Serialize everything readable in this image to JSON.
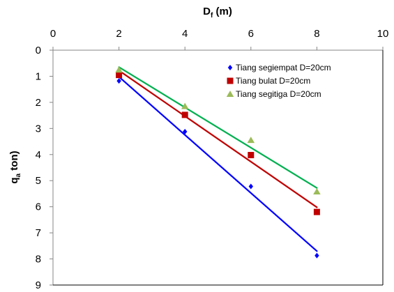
{
  "chart_data": {
    "type": "scatter",
    "title": "",
    "xlabel_main": "D",
    "xlabel_sub": "f",
    "xlabel_rest": " (m)",
    "ylabel_main": "q",
    "ylabel_sub": "a",
    "ylabel_rest": " ton)",
    "xlim": [
      0,
      10
    ],
    "ylim": [
      0,
      9
    ],
    "y_inverted": true,
    "x_axis_position": "top",
    "xticks": [
      "0",
      "2",
      "4",
      "6",
      "8",
      "10"
    ],
    "yticks": [
      "0",
      "1",
      "2",
      "3",
      "4",
      "5",
      "6",
      "7",
      "8",
      "9"
    ],
    "grid": false,
    "legend_placement": "top-right",
    "series": [
      {
        "name": "Tiang segiempat D=20cm",
        "marker": "diamond",
        "color": "#0000FF",
        "x": [
          2,
          4,
          6,
          8
        ],
        "y": [
          1.18,
          3.12,
          5.22,
          7.87
        ],
        "trend": {
          "x": [
            2,
            8
          ],
          "y": [
            1.02,
            7.7
          ]
        }
      },
      {
        "name": "Tiang bulat D=20cm",
        "marker": "square",
        "color": "#C00000",
        "x": [
          2,
          4,
          6,
          8
        ],
        "y": [
          0.95,
          2.48,
          4.02,
          6.2
        ],
        "trend": {
          "x": [
            2,
            8
          ],
          "y": [
            0.78,
            6.02
          ]
        }
      },
      {
        "name": "Tiang segitiga D=20cm",
        "marker": "triangle",
        "color": "#9BBB59",
        "line_color": "#00B050",
        "x": [
          2,
          4,
          6,
          8
        ],
        "y": [
          0.75,
          2.15,
          3.45,
          5.42
        ],
        "trend": {
          "x": [
            2,
            8
          ],
          "y": [
            0.65,
            5.28
          ]
        }
      }
    ]
  }
}
